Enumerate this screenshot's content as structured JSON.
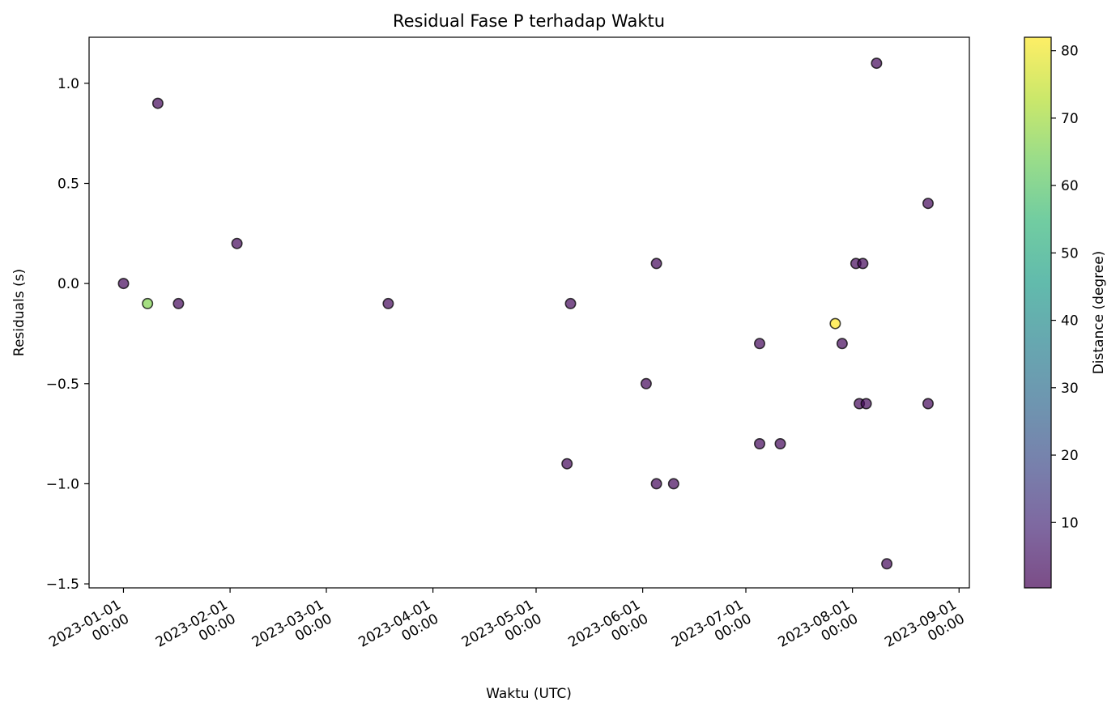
{
  "chart_data": {
    "type": "scatter",
    "title": "Residual Fase P terhadap Waktu",
    "xlabel": "Waktu (UTC)",
    "ylabel": "Residuals (s)",
    "colorbar_label": "Distance (degree)",
    "x_axis": "datetime",
    "xlim": [
      "2022-12-22",
      "2023-09-04"
    ],
    "ylim": [
      -1.52,
      1.23
    ],
    "clim": [
      0.3,
      82
    ],
    "colormap": "viridis",
    "grid": false,
    "marker_alpha": 0.7,
    "x_ticks": [
      {
        "value": "2023-01-01",
        "line1": "2023-01-01",
        "line2": "00:00"
      },
      {
        "value": "2023-02-01",
        "line1": "2023-02-01",
        "line2": "00:00"
      },
      {
        "value": "2023-03-01",
        "line1": "2023-03-01",
        "line2": "00:00"
      },
      {
        "value": "2023-04-01",
        "line1": "2023-04-01",
        "line2": "00:00"
      },
      {
        "value": "2023-05-01",
        "line1": "2023-05-01",
        "line2": "00:00"
      },
      {
        "value": "2023-06-01",
        "line1": "2023-06-01",
        "line2": "00:00"
      },
      {
        "value": "2023-07-01",
        "line1": "2023-07-01",
        "line2": "00:00"
      },
      {
        "value": "2023-08-01",
        "line1": "2023-08-01",
        "line2": "00:00"
      },
      {
        "value": "2023-09-01",
        "line1": "2023-09-01",
        "line2": "00:00"
      }
    ],
    "y_ticks": [
      {
        "value": -1.5,
        "label": "−1.5"
      },
      {
        "value": -1.0,
        "label": "−1.0"
      },
      {
        "value": -0.5,
        "label": "−0.5"
      },
      {
        "value": 0.0,
        "label": "0.0"
      },
      {
        "value": 0.5,
        "label": "0.5"
      },
      {
        "value": 1.0,
        "label": "1.0"
      }
    ],
    "c_ticks": [
      {
        "value": 10,
        "label": "10"
      },
      {
        "value": 20,
        "label": "20"
      },
      {
        "value": 30,
        "label": "30"
      },
      {
        "value": 40,
        "label": "40"
      },
      {
        "value": 50,
        "label": "50"
      },
      {
        "value": 60,
        "label": "60"
      },
      {
        "value": 70,
        "label": "70"
      },
      {
        "value": 80,
        "label": "80"
      }
    ],
    "points": [
      {
        "x": "2023-01-01",
        "y": 0.0,
        "c": 2
      },
      {
        "x": "2023-01-08",
        "y": -0.1,
        "c": 66
      },
      {
        "x": "2023-01-11",
        "y": 0.9,
        "c": 2
      },
      {
        "x": "2023-01-17",
        "y": -0.1,
        "c": 2
      },
      {
        "x": "2023-02-03",
        "y": 0.2,
        "c": 2
      },
      {
        "x": "2023-03-19",
        "y": -0.1,
        "c": 2
      },
      {
        "x": "2023-05-10",
        "y": -0.9,
        "c": 2
      },
      {
        "x": "2023-05-11",
        "y": -0.1,
        "c": 2
      },
      {
        "x": "2023-06-02",
        "y": -0.5,
        "c": 2
      },
      {
        "x": "2023-06-05",
        "y": 0.1,
        "c": 2
      },
      {
        "x": "2023-06-05",
        "y": -1.0,
        "c": 2
      },
      {
        "x": "2023-06-10",
        "y": -1.0,
        "c": 2
      },
      {
        "x": "2023-07-05",
        "y": -0.3,
        "c": 2
      },
      {
        "x": "2023-07-05",
        "y": -0.8,
        "c": 2
      },
      {
        "x": "2023-07-11",
        "y": -0.8,
        "c": 2
      },
      {
        "x": "2023-07-27",
        "y": -0.2,
        "c": 82
      },
      {
        "x": "2023-07-29",
        "y": -0.3,
        "c": 2
      },
      {
        "x": "2023-08-02",
        "y": 0.1,
        "c": 2
      },
      {
        "x": "2023-08-03",
        "y": -0.6,
        "c": 2
      },
      {
        "x": "2023-08-04",
        "y": 0.1,
        "c": 2
      },
      {
        "x": "2023-08-05",
        "y": -0.6,
        "c": 2
      },
      {
        "x": "2023-08-08",
        "y": 1.1,
        "c": 2
      },
      {
        "x": "2023-08-11",
        "y": -1.4,
        "c": 2
      },
      {
        "x": "2023-08-23",
        "y": 0.4,
        "c": 2
      },
      {
        "x": "2023-08-23",
        "y": -0.6,
        "c": 2
      }
    ]
  }
}
